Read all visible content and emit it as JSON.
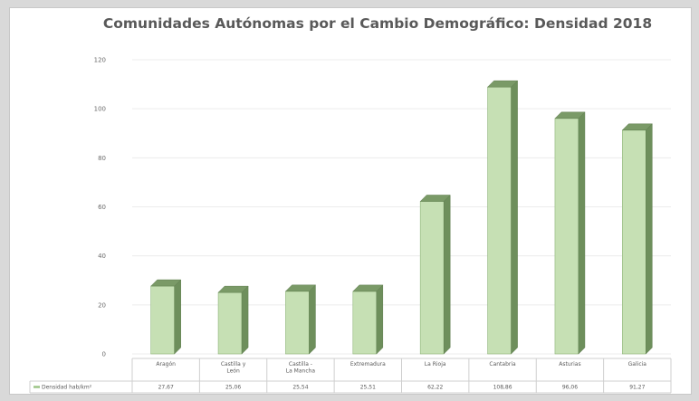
{
  "chart_data": {
    "type": "bar",
    "title": "Comunidades Autónomas por el  Cambio Demográfico: Densidad 2018",
    "categories": [
      [
        "Aragón"
      ],
      [
        "Castilla y",
        "León"
      ],
      [
        "Castilla -",
        "La Mancha"
      ],
      [
        "Extremadura"
      ],
      [
        "La Rioja"
      ],
      [
        "Cantabria"
      ],
      [
        "Asturias"
      ],
      [
        "Galicia"
      ]
    ],
    "series": [
      {
        "name": "Densidad hab/km²",
        "values": [
          27.67,
          25.06,
          25.54,
          25.51,
          62.22,
          108.86,
          96.06,
          91.27
        ],
        "table_labels": [
          "27,67",
          "25,06",
          "25,54",
          "25,51",
          "62,22",
          "108,86",
          "96,06",
          "91,27"
        ],
        "color": "#c6e0b4"
      }
    ],
    "yticks": [
      "120",
      "100",
      "80",
      "60",
      "40",
      "20",
      "0"
    ],
    "ylim": [
      0,
      120
    ],
    "grid": true,
    "legend": "data-table"
  }
}
